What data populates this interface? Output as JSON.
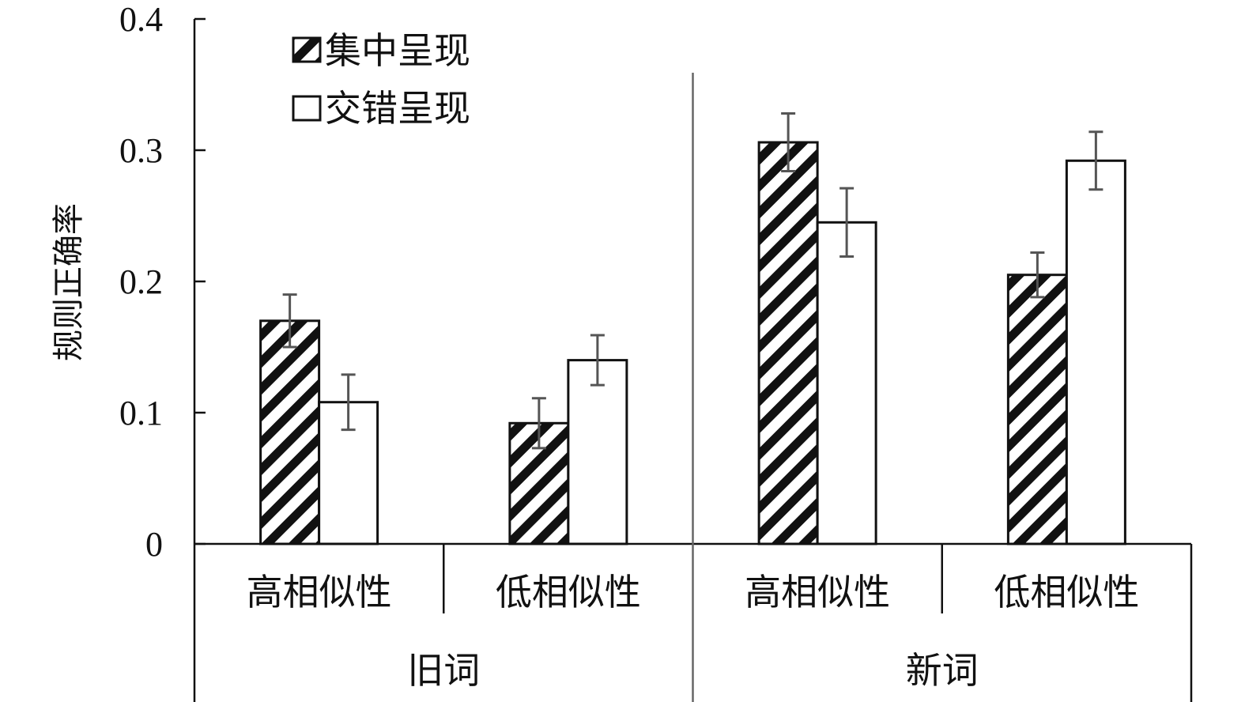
{
  "chart_data": {
    "type": "bar",
    "ylabel": "规则正确率",
    "ylim": [
      0,
      0.4
    ],
    "yticks": [
      "0",
      "0.1",
      "0.2",
      "0.3",
      "0.4"
    ],
    "groups": [
      {
        "label": "旧词",
        "categories": [
          "高相似性",
          "低相似性"
        ]
      },
      {
        "label": "新词",
        "categories": [
          "高相似性",
          "低相似性"
        ]
      }
    ],
    "categories": [
      "高相似性",
      "低相似性",
      "高相似性",
      "低相似性"
    ],
    "series": [
      {
        "name": "集中呈现",
        "pattern": "diagonal-hatch",
        "values": [
          0.17,
          0.092,
          0.306,
          0.205
        ],
        "errors": [
          0.02,
          0.019,
          0.022,
          0.017
        ]
      },
      {
        "name": "交错呈现",
        "pattern": "solid-white",
        "values": [
          0.108,
          0.14,
          0.245,
          0.292
        ],
        "errors": [
          0.021,
          0.019,
          0.026,
          0.022
        ]
      }
    ],
    "legend_position": "top-left",
    "grid": false,
    "colors": {
      "bar_stroke": "#111111",
      "error_bar": "#555555",
      "hatch": "#111111",
      "fill_white": "#ffffff"
    }
  }
}
